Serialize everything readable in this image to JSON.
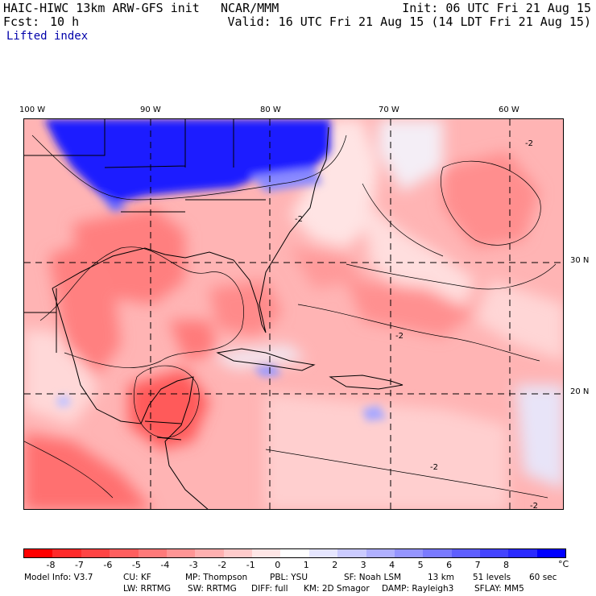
{
  "header": {
    "model_title": "HAIC-HIWC 13km ARW-GFS init",
    "org": "NCAR/MMM",
    "init_time": "Init: 06 UTC Fri 21 Aug 15",
    "fcst_label": "Fcst:",
    "fcst_value": "10 h",
    "valid_time": "Valid: 16 UTC Fri 21 Aug 15 (14 LDT Fri 21 Aug 15)",
    "field_name": "Lifted index"
  },
  "map": {
    "longitude_labels": [
      "100 W",
      "90 W",
      "80 W",
      "70 W",
      "60 W"
    ],
    "latitude_labels": [
      "30 N",
      "20 N"
    ],
    "contour_label": "-2",
    "region": "Gulf of Mexico, Caribbean and western Atlantic"
  },
  "colorbar": {
    "colors": [
      "#ff0000",
      "#ff2a2a",
      "#ff4444",
      "#ff5f5f",
      "#ff7a7a",
      "#ff9595",
      "#ffb0b0",
      "#ffcbcb",
      "#ffe6e6",
      "#ffffff",
      "#e6e6ff",
      "#cbcbff",
      "#b0b0ff",
      "#9595ff",
      "#7a7aff",
      "#5f5fff",
      "#4444ff",
      "#2a2aff",
      "#0000ff"
    ],
    "tick_labels": [
      "-8",
      "-7",
      "-6",
      "-5",
      "-4",
      "-3",
      "-2",
      "-1",
      "0",
      "1",
      "2",
      "3",
      "4",
      "5",
      "6",
      "7",
      "8"
    ],
    "unit": "°C"
  },
  "footer": {
    "line1": [
      "Model Info: V3.7",
      "CU: KF",
      "MP: Thompson",
      "PBL: YSU",
      "SF: Noah LSM",
      "13 km",
      "51 levels",
      "60 sec"
    ],
    "line2": [
      "LW: RRTMG",
      "SW: RRTMG",
      "DIFF: full",
      "KM: 2D Smagor",
      "DAMP: Rayleigh3",
      "SFLAY: MM5"
    ]
  }
}
